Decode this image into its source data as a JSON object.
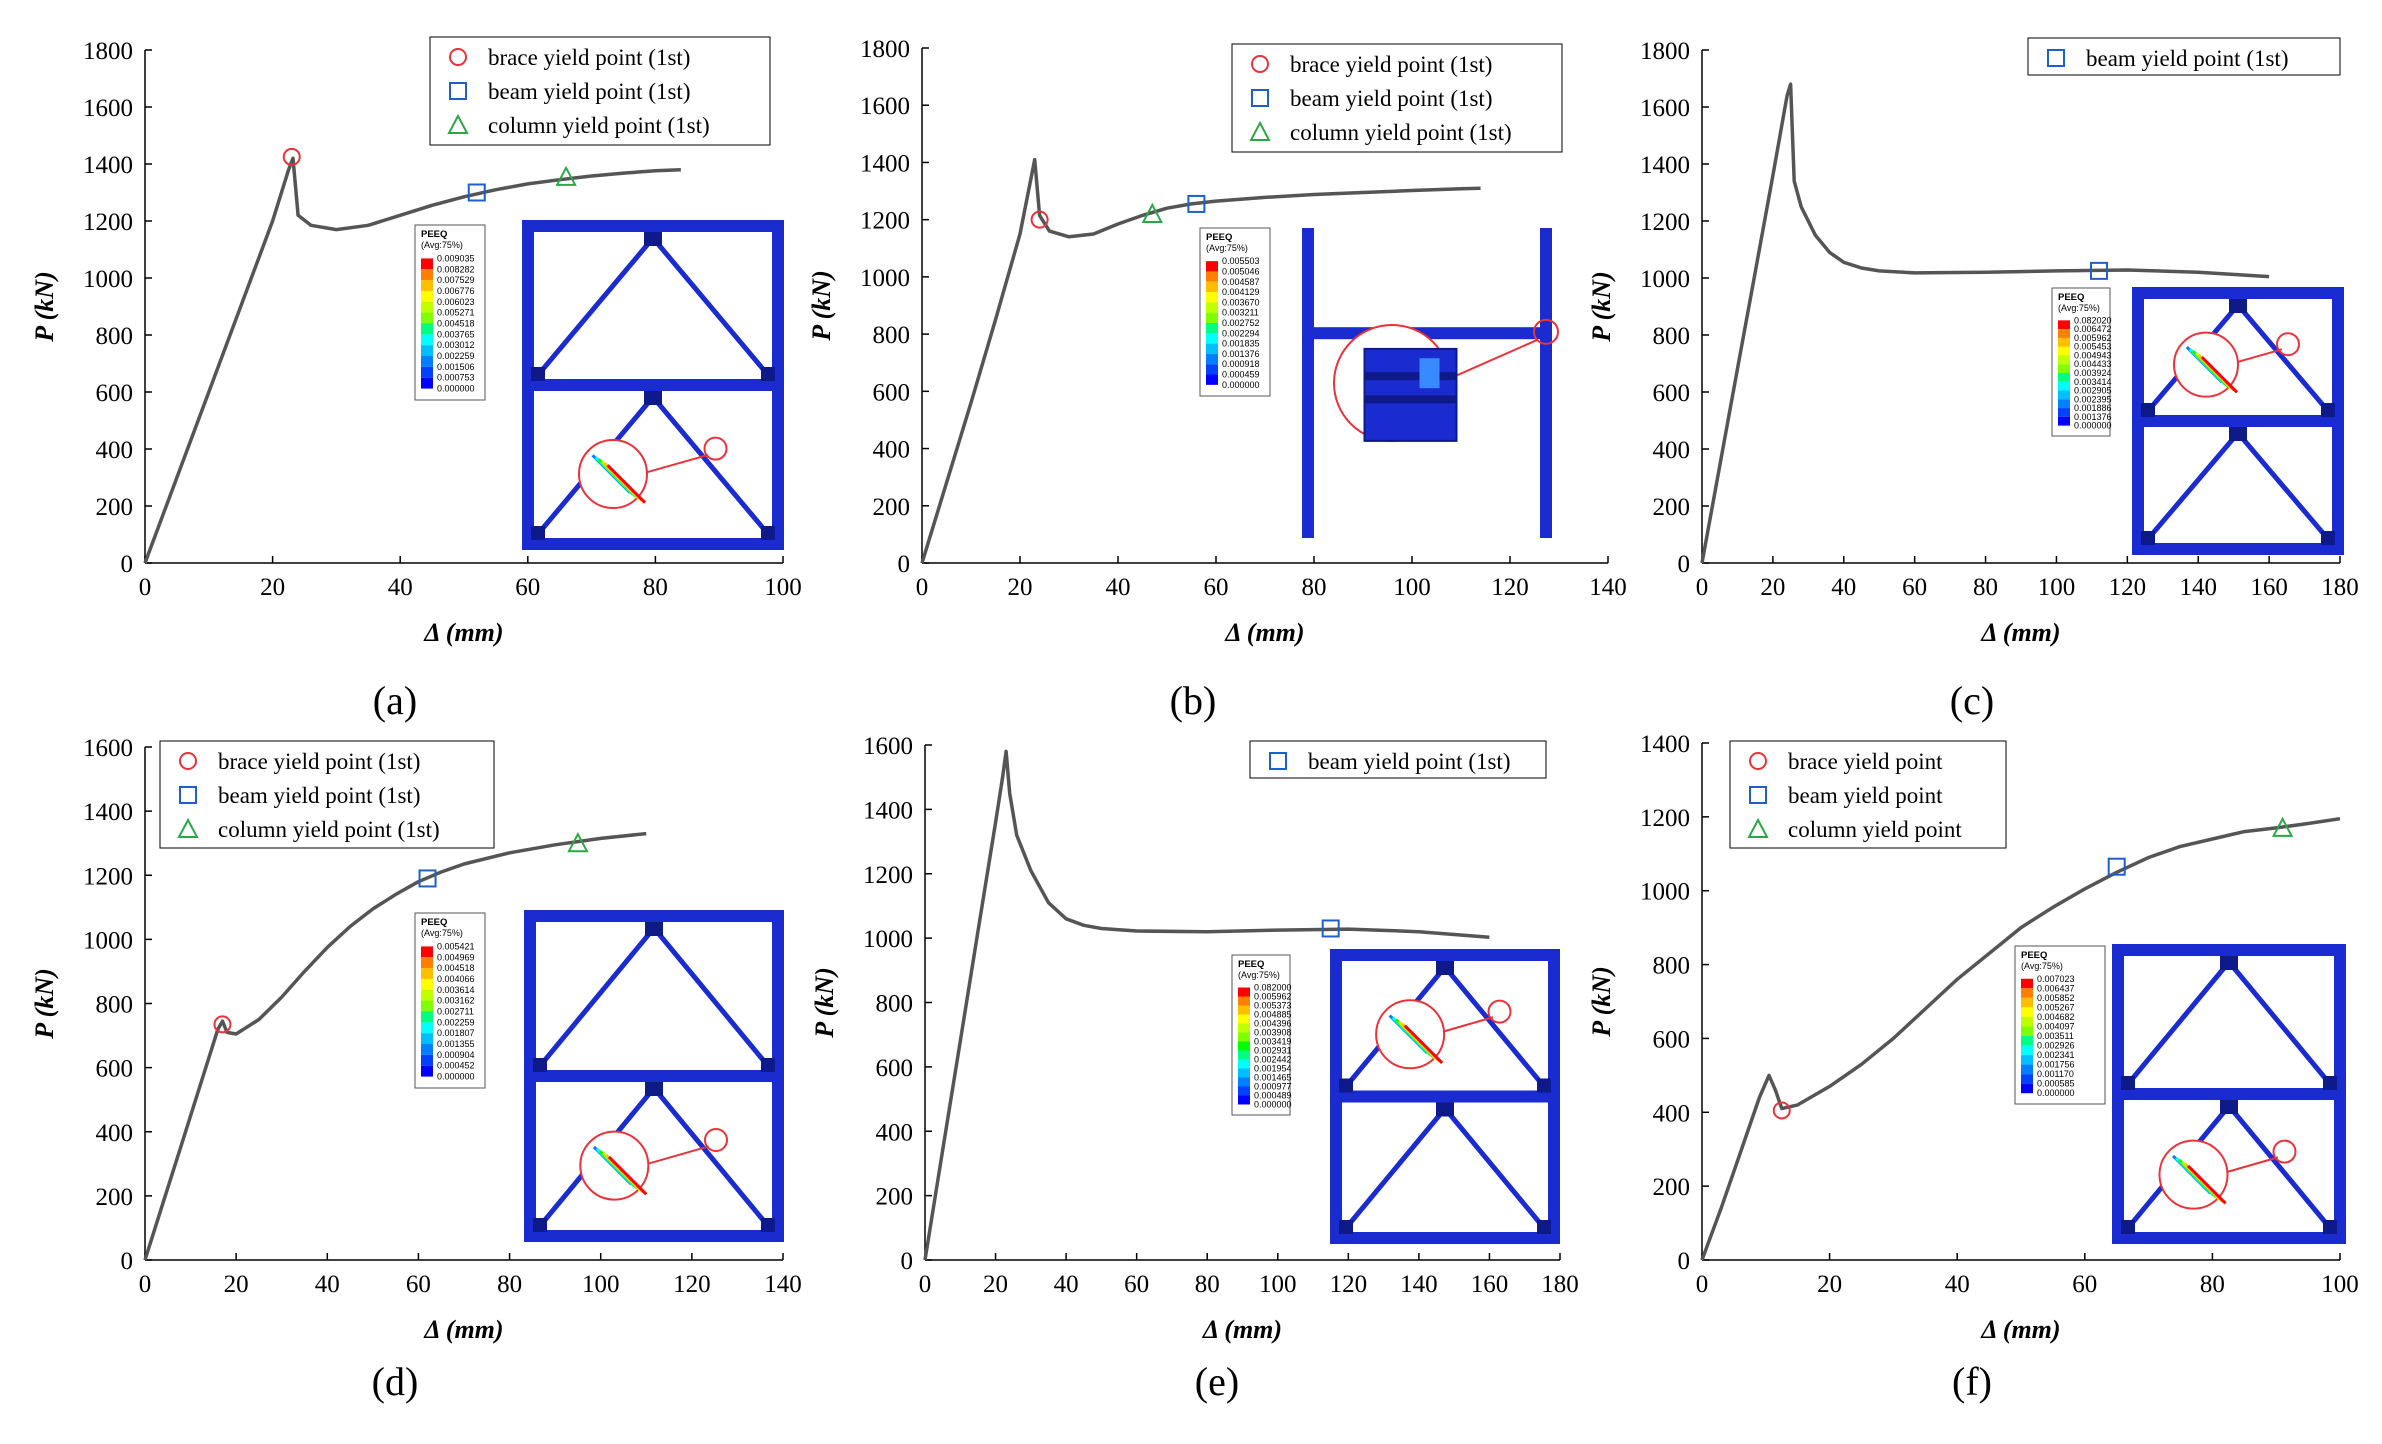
{
  "colors": {
    "curve": "#555555",
    "brace": "#e8333a",
    "beam": "#1f5fc8",
    "column": "#2aa845",
    "frame": "#1a2bd0",
    "frame_dark": "#0f1a8a",
    "highlight": "#e8333a"
  },
  "legend_labels": {
    "brace1": "brace yield point (1st)",
    "beam1": "beam yield point (1st)",
    "column1": "column yield point (1st)",
    "brace": "brace yield point",
    "beam": "beam yield point",
    "column": "column yield point"
  },
  "contour_scale": [
    "#0000ff",
    "#0040ff",
    "#0080ff",
    "#00bfff",
    "#00ffff",
    "#00ff80",
    "#00ff00",
    "#80ff00",
    "#bfff00",
    "#ffff00",
    "#ffbf00",
    "#ff8000",
    "#ff0000"
  ],
  "chart_data": [
    {
      "type": "line",
      "panel": "(a)",
      "xlabel": "Δ (mm)",
      "ylabel": "P (kN)",
      "xlim": [
        0,
        100
      ],
      "ylim": [
        0,
        1800
      ],
      "xticks": [
        0,
        20,
        40,
        60,
        80,
        100
      ],
      "yticks": [
        0,
        200,
        400,
        600,
        800,
        1000,
        1200,
        1400,
        1600,
        1800
      ],
      "series": [
        {
          "name": "P-Δ curve",
          "x": [
            0,
            5,
            10,
            15,
            20,
            22.5,
            23.2,
            24,
            26,
            30,
            35,
            40,
            45,
            50,
            55,
            60,
            65,
            70,
            75,
            80,
            84
          ],
          "y": [
            0,
            300,
            600,
            900,
            1200,
            1380,
            1420,
            1220,
            1185,
            1170,
            1185,
            1220,
            1255,
            1285,
            1310,
            1330,
            1345,
            1358,
            1368,
            1376,
            1380
          ]
        }
      ],
      "markers": [
        {
          "kind": "brace",
          "label": "brace yield point (1st)",
          "x": 23,
          "y": 1425
        },
        {
          "kind": "beam",
          "label": "beam yield point (1st)",
          "x": 52,
          "y": 1300
        },
        {
          "kind": "column",
          "label": "column yield point (1st)",
          "x": 66,
          "y": 1355
        }
      ],
      "legend": "top-right",
      "contour": {
        "title": "PEEQ",
        "avg": "(Avg:75%)",
        "values": [
          "0.009035",
          "0.008282",
          "0.007529",
          "0.006776",
          "0.006023",
          "0.005271",
          "0.004518",
          "0.003765",
          "0.003012",
          "0.002259",
          "0.001506",
          "0.000753",
          "0.000000"
        ]
      }
    },
    {
      "type": "line",
      "panel": "(b)",
      "xlabel": "Δ (mm)",
      "ylabel": "P (kN)",
      "xlim": [
        0,
        140
      ],
      "ylim": [
        0,
        1800
      ],
      "xticks": [
        0,
        20,
        40,
        60,
        80,
        100,
        120,
        140
      ],
      "yticks": [
        0,
        200,
        400,
        600,
        800,
        1000,
        1200,
        1400,
        1600,
        1800
      ],
      "series": [
        {
          "name": "P-Δ curve",
          "x": [
            0,
            5,
            10,
            15,
            20,
            23,
            24,
            26,
            30,
            35,
            40,
            45,
            50,
            55,
            60,
            70,
            80,
            90,
            100,
            110,
            114
          ],
          "y": [
            0,
            280,
            560,
            850,
            1150,
            1410,
            1215,
            1160,
            1140,
            1150,
            1185,
            1215,
            1240,
            1255,
            1265,
            1278,
            1288,
            1295,
            1302,
            1308,
            1310
          ]
        }
      ],
      "markers": [
        {
          "kind": "brace",
          "label": "brace yield point (1st)",
          "x": 24,
          "y": 1200
        },
        {
          "kind": "column",
          "label": "column yield point (1st)",
          "x": 47,
          "y": 1220
        },
        {
          "kind": "beam",
          "label": "beam yield point (1st)",
          "x": 56,
          "y": 1255
        }
      ],
      "legend": "top-right",
      "contour": {
        "title": "PEEQ",
        "avg": "(Avg:75%)",
        "values": [
          "0.005503",
          "0.005046",
          "0.004587",
          "0.004129",
          "0.003670",
          "0.003211",
          "0.002752",
          "0.002294",
          "0.001835",
          "0.001376",
          "0.000918",
          "0.000459",
          "0.000000"
        ]
      }
    },
    {
      "type": "line",
      "panel": "(c)",
      "xlabel": "Δ (mm)",
      "ylabel": "P (kN)",
      "xlim": [
        0,
        180
      ],
      "ylim": [
        0,
        1800
      ],
      "xticks": [
        0,
        20,
        40,
        60,
        80,
        100,
        120,
        140,
        160,
        180
      ],
      "yticks": [
        0,
        200,
        400,
        600,
        800,
        1000,
        1200,
        1400,
        1600,
        1800
      ],
      "series": [
        {
          "name": "P-Δ curve",
          "x": [
            0,
            5,
            10,
            15,
            20,
            24,
            25,
            26,
            28,
            32,
            36,
            40,
            45,
            50,
            60,
            80,
            100,
            120,
            140,
            160
          ],
          "y": [
            0,
            340,
            680,
            1020,
            1360,
            1640,
            1680,
            1340,
            1250,
            1150,
            1090,
            1055,
            1035,
            1025,
            1018,
            1020,
            1025,
            1028,
            1020,
            1005
          ]
        }
      ],
      "markers": [
        {
          "kind": "beam",
          "label": "beam yield point (1st)",
          "x": 112,
          "y": 1025
        }
      ],
      "legend": "top-right",
      "contour": {
        "title": "PEEQ",
        "avg": "(Avg:75%)",
        "values": [
          "0.082020",
          "0.006472",
          "0.005962",
          "0.005453",
          "0.004943",
          "0.004433",
          "0.003924",
          "0.003414",
          "0.002905",
          "0.002395",
          "0.001886",
          "0.001376",
          "0.000000"
        ]
      }
    },
    {
      "type": "line",
      "panel": "(d)",
      "xlabel": "Δ (mm)",
      "ylabel": "P (kN)",
      "xlim": [
        0,
        140
      ],
      "ylim": [
        0,
        1600
      ],
      "xticks": [
        0,
        20,
        40,
        60,
        80,
        100,
        120,
        140
      ],
      "yticks": [
        0,
        200,
        400,
        600,
        800,
        1000,
        1200,
        1400,
        1600
      ],
      "series": [
        {
          "name": "P-Δ curve",
          "x": [
            0,
            4,
            8,
            12,
            16,
            17,
            18,
            20,
            25,
            30,
            35,
            40,
            45,
            50,
            55,
            60,
            65,
            70,
            80,
            90,
            100,
            110
          ],
          "y": [
            0,
            180,
            360,
            540,
            720,
            745,
            710,
            705,
            750,
            820,
            900,
            975,
            1040,
            1095,
            1140,
            1180,
            1210,
            1235,
            1270,
            1295,
            1315,
            1330
          ]
        }
      ],
      "markers": [
        {
          "kind": "brace",
          "label": "brace yield point (1st)",
          "x": 17,
          "y": 735
        },
        {
          "kind": "beam",
          "label": "beam yield point (1st)",
          "x": 62,
          "y": 1190
        },
        {
          "kind": "column",
          "label": "column yield point (1st)",
          "x": 95,
          "y": 1300
        }
      ],
      "legend": "top-left",
      "contour": {
        "title": "PEEQ",
        "avg": "(Avg:75%)",
        "values": [
          "0.005421",
          "0.004969",
          "0.004518",
          "0.004066",
          "0.003614",
          "0.003162",
          "0.002711",
          "0.002259",
          "0.001807",
          "0.001355",
          "0.000904",
          "0.000452",
          "0.000000"
        ]
      }
    },
    {
      "type": "line",
      "panel": "(e)",
      "xlabel": "Δ (mm)",
      "ylabel": "P (kN)",
      "xlim": [
        0,
        180
      ],
      "ylim": [
        0,
        1600
      ],
      "xticks": [
        0,
        20,
        40,
        60,
        80,
        100,
        120,
        140,
        160,
        180
      ],
      "yticks": [
        0,
        200,
        400,
        600,
        800,
        1000,
        1200,
        1400,
        1600
      ],
      "series": [
        {
          "name": "P-Δ curve",
          "x": [
            0,
            5,
            10,
            15,
            20,
            22,
            23,
            24,
            26,
            30,
            35,
            40,
            45,
            50,
            60,
            80,
            100,
            120,
            140,
            160
          ],
          "y": [
            0,
            340,
            680,
            1020,
            1360,
            1500,
            1580,
            1450,
            1320,
            1210,
            1110,
            1060,
            1040,
            1030,
            1022,
            1020,
            1025,
            1028,
            1020,
            1003
          ]
        }
      ],
      "markers": [
        {
          "kind": "beam",
          "label": "beam yield point (1st)",
          "x": 115,
          "y": 1030
        }
      ],
      "legend": "top-right",
      "contour": {
        "title": "PEEQ",
        "avg": "(Avg:75%)",
        "values": [
          "0.082000",
          "0.005962",
          "0.005373",
          "0.004885",
          "0.004396",
          "0.003908",
          "0.003419",
          "0.002931",
          "0.002442",
          "0.001954",
          "0.001465",
          "0.000977",
          "0.000489",
          "0.000000"
        ]
      }
    },
    {
      "type": "line",
      "panel": "(f)",
      "xlabel": "Δ (mm)",
      "ylabel": "P (kN)",
      "xlim": [
        0,
        100
      ],
      "ylim": [
        0,
        1400
      ],
      "xticks": [
        0,
        20,
        40,
        60,
        80,
        100
      ],
      "yticks": [
        0,
        200,
        400,
        600,
        800,
        1000,
        1200,
        1400
      ],
      "series": [
        {
          "name": "P-Δ curve",
          "x": [
            0,
            3,
            6,
            9,
            10.5,
            11.5,
            12.5,
            15,
            20,
            25,
            30,
            35,
            40,
            45,
            50,
            55,
            60,
            65,
            70,
            75,
            80,
            85,
            90,
            95,
            100
          ],
          "y": [
            0,
            140,
            290,
            440,
            500,
            460,
            410,
            420,
            470,
            530,
            600,
            680,
            760,
            830,
            900,
            955,
            1005,
            1050,
            1090,
            1120,
            1140,
            1160,
            1170,
            1182,
            1195
          ]
        }
      ],
      "markers": [
        {
          "kind": "brace",
          "label": "brace yield point",
          "x": 12.5,
          "y": 405
        },
        {
          "kind": "beam",
          "label": "beam yield point",
          "x": 65,
          "y": 1065
        },
        {
          "kind": "column",
          "label": "column yield point",
          "x": 91,
          "y": 1170
        }
      ],
      "legend": "top-left",
      "contour": {
        "title": "PEEQ",
        "avg": "(Avg:75%)",
        "values": [
          "0.007023",
          "0.006437",
          "0.005852",
          "0.005267",
          "0.004682",
          "0.004097",
          "0.003511",
          "0.002926",
          "0.002341",
          "0.001756",
          "0.001170",
          "0.000585",
          "0.000000"
        ]
      }
    }
  ]
}
